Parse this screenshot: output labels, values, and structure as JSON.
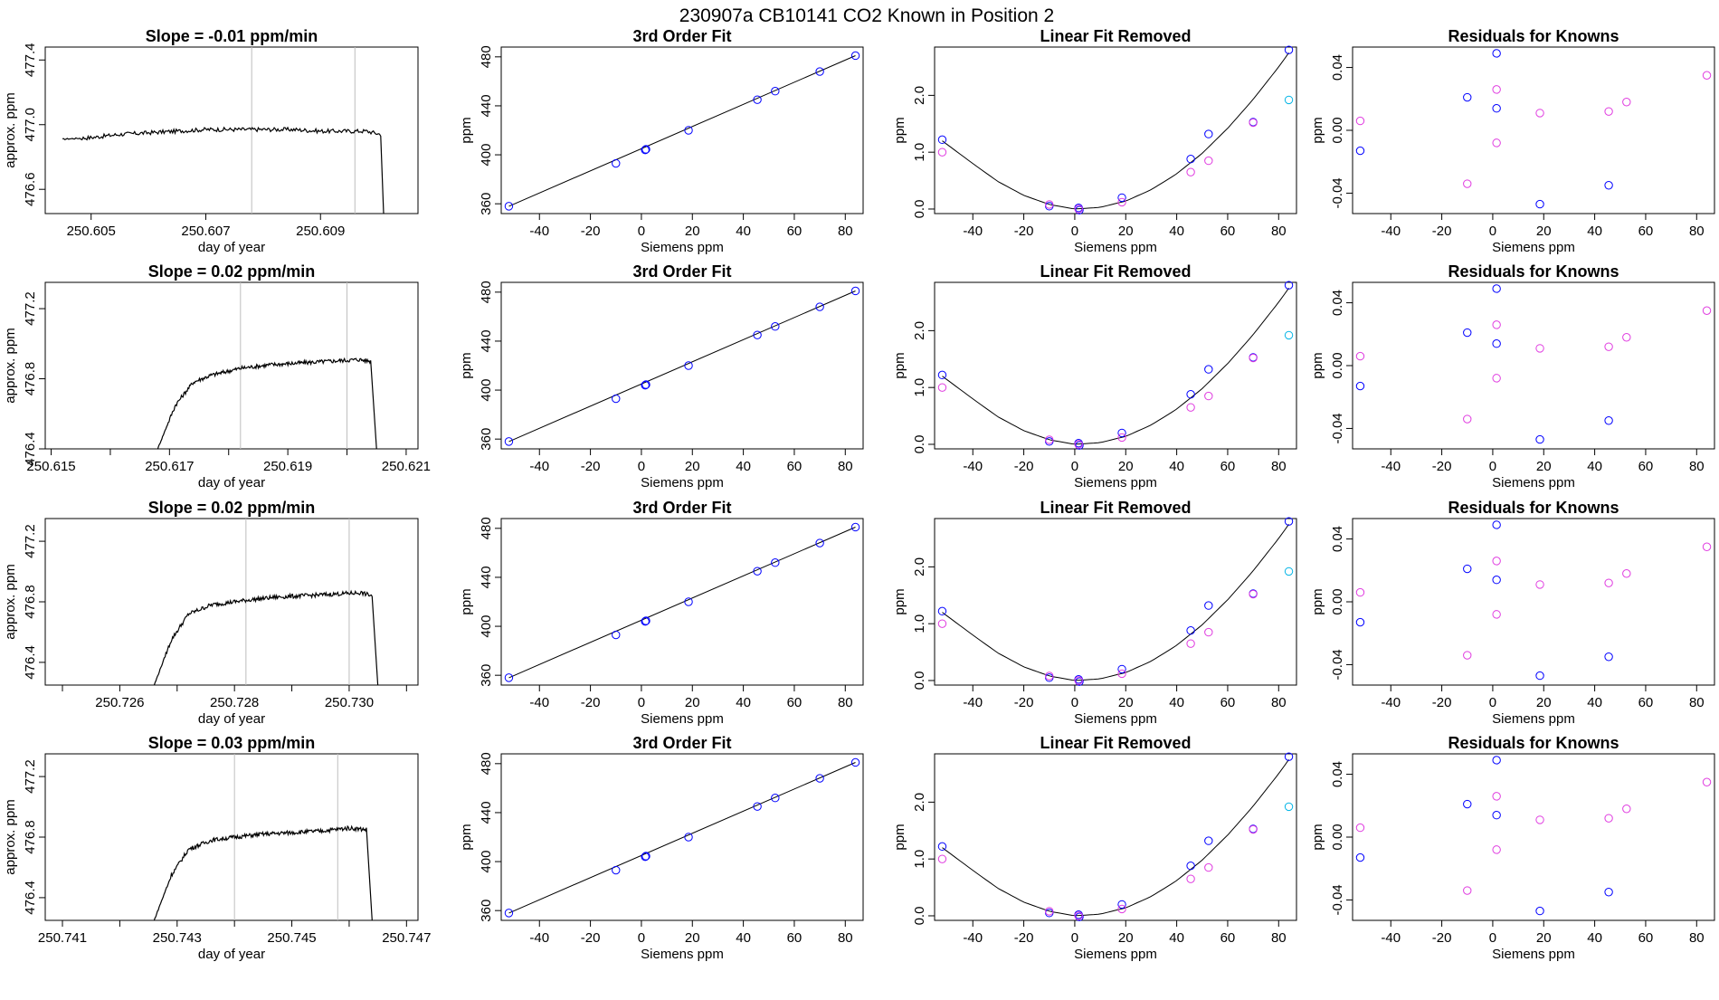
{
  "page": {
    "title": "230907a     CB10141    CO2 Known in Position  2"
  },
  "colors": {
    "line": "#000000",
    "frame": "#000000",
    "vline": "#bebebe",
    "point_blue": "#0000ff",
    "point_magenta": "#e03ce0",
    "point_cyan": "#00b4e6",
    "spike_red": "#ff0000"
  },
  "rows": [
    {
      "trace": {
        "title": "Slope =  -0.01  ppm/min",
        "xlabel": "day of year",
        "ylabel": "approx. ppm",
        "xticks": [
          "250.605",
          "250.607",
          "250.609"
        ],
        "yticks": [
          "476.6",
          "477.0",
          "477.4"
        ]
      },
      "fit": {
        "title": "3rd Order Fit",
        "xlabel": "Siemens ppm",
        "ylabel": "ppm",
        "xticks": [
          "-40",
          "-20",
          "0",
          "20",
          "40",
          "60",
          "80"
        ],
        "yticks": [
          "360",
          "400",
          "440",
          "480"
        ]
      },
      "linear": {
        "title": "Linear Fit Removed",
        "xlabel": "Siemens ppm",
        "ylabel": "ppm",
        "xticks": [
          "-40",
          "-20",
          "0",
          "20",
          "40",
          "60",
          "80"
        ],
        "yticks": [
          "0.0",
          "1.0",
          "2.0"
        ]
      },
      "resid": {
        "title": "Residuals for Knowns",
        "xlabel": "Siemens ppm",
        "ylabel": "ppm",
        "xticks": [
          "-40",
          "-20",
          "0",
          "20",
          "40",
          "60",
          "80"
        ],
        "yticks": [
          "-0.04",
          "0.00",
          "0.04"
        ]
      }
    },
    {
      "trace": {
        "title": "Slope =  0.02  ppm/min",
        "xlabel": "day of year",
        "ylabel": "approx. ppm",
        "xticks": [
          "250.615",
          "250.617",
          "250.619",
          "250.621"
        ],
        "yticks": [
          "476.4",
          "476.8",
          "477.2"
        ]
      },
      "fit": {
        "title": "3rd Order Fit",
        "xlabel": "Siemens ppm",
        "ylabel": "ppm",
        "xticks": [
          "-40",
          "-20",
          "0",
          "20",
          "40",
          "60",
          "80"
        ],
        "yticks": [
          "360",
          "400",
          "440",
          "480"
        ]
      },
      "linear": {
        "title": "Linear Fit Removed",
        "xlabel": "Siemens ppm",
        "ylabel": "ppm",
        "xticks": [
          "-40",
          "-20",
          "0",
          "20",
          "40",
          "60",
          "80"
        ],
        "yticks": [
          "0.0",
          "1.0",
          "2.0"
        ]
      },
      "resid": {
        "title": "Residuals for Knowns",
        "xlabel": "Siemens ppm",
        "ylabel": "ppm",
        "xticks": [
          "-40",
          "-20",
          "0",
          "20",
          "40",
          "60",
          "80"
        ],
        "yticks": [
          "-0.04",
          "0.00",
          "0.04"
        ]
      }
    },
    {
      "trace": {
        "title": "Slope =  0.02  ppm/min",
        "xlabel": "day of year",
        "ylabel": "approx. ppm",
        "xticks": [
          "250.726",
          "250.728",
          "250.730"
        ],
        "yticks": [
          "476.4",
          "476.8",
          "477.2"
        ]
      },
      "fit": {
        "title": "3rd Order Fit",
        "xlabel": "Siemens ppm",
        "ylabel": "ppm",
        "xticks": [
          "-40",
          "-20",
          "0",
          "20",
          "40",
          "60",
          "80"
        ],
        "yticks": [
          "360",
          "400",
          "440",
          "480"
        ]
      },
      "linear": {
        "title": "Linear Fit Removed",
        "xlabel": "Siemens ppm",
        "ylabel": "ppm",
        "xticks": [
          "-40",
          "-20",
          "0",
          "20",
          "40",
          "60",
          "80"
        ],
        "yticks": [
          "0.0",
          "1.0",
          "2.0"
        ]
      },
      "resid": {
        "title": "Residuals for Knowns",
        "xlabel": "Siemens ppm",
        "ylabel": "ppm",
        "xticks": [
          "-40",
          "-20",
          "0",
          "20",
          "40",
          "60",
          "80"
        ],
        "yticks": [
          "-0.04",
          "0.00",
          "0.04"
        ]
      }
    },
    {
      "trace": {
        "title": "Slope =  0.03  ppm/min",
        "xlabel": "day of year",
        "ylabel": "approx. ppm",
        "xticks": [
          "250.741",
          "250.743",
          "250.745",
          "250.747"
        ],
        "yticks": [
          "476.4",
          "476.8",
          "477.2"
        ]
      },
      "fit": {
        "title": "3rd Order Fit",
        "xlabel": "Siemens ppm",
        "ylabel": "ppm",
        "xticks": [
          "-40",
          "-20",
          "0",
          "20",
          "40",
          "60",
          "80"
        ],
        "yticks": [
          "360",
          "400",
          "440",
          "480"
        ]
      },
      "linear": {
        "title": "Linear Fit Removed",
        "xlabel": "Siemens ppm",
        "ylabel": "ppm",
        "xticks": [
          "-40",
          "-20",
          "0",
          "20",
          "40",
          "60",
          "80"
        ],
        "yticks": [
          "0.0",
          "1.0",
          "2.0"
        ]
      },
      "resid": {
        "title": "Residuals for Knowns",
        "xlabel": "Siemens ppm",
        "ylabel": "ppm",
        "xticks": [
          "-40",
          "-20",
          "0",
          "20",
          "40",
          "60",
          "80"
        ],
        "yticks": [
          "-0.04",
          "0.00",
          "0.04"
        ]
      }
    }
  ],
  "chart_data": [
    {
      "type": "line",
      "title": "Slope =  -0.01  ppm/min",
      "xlabel": "day of year",
      "ylabel": "approx. ppm",
      "xlim": [
        250.6042,
        250.6107
      ],
      "ylim": [
        476.45,
        477.48
      ],
      "x_ticks": [
        250.605,
        250.607,
        250.609
      ],
      "y_ticks": [
        476.6,
        477.0,
        477.4
      ],
      "vlines": [
        250.6078,
        250.6096
      ],
      "series": [
        {
          "x": [
            250.6045,
            250.605,
            250.6055,
            250.606,
            250.6065,
            250.607,
            250.6075,
            250.608,
            250.6085,
            250.609,
            250.6095,
            250.6098,
            250.61005,
            250.6101
          ],
          "y": [
            476.91,
            476.92,
            476.94,
            476.95,
            476.96,
            476.97,
            476.97,
            476.97,
            476.97,
            476.96,
            476.96,
            476.96,
            476.94,
            476.45
          ]
        }
      ]
    },
    {
      "type": "line",
      "title": "Slope =  0.02  ppm/min",
      "xlabel": "day of year",
      "ylabel": "approx. ppm",
      "xlim": [
        250.6149,
        250.6212
      ],
      "ylim": [
        476.4,
        477.35
      ],
      "x_ticks": [
        250.615,
        250.616,
        250.617,
        250.618,
        250.619,
        250.62,
        250.621
      ],
      "y_ticks": [
        476.4,
        476.8,
        477.2
      ],
      "vlines": [
        250.6182,
        250.62
      ],
      "series": [
        {
          "x": [
            250.6168,
            250.6171,
            250.6174,
            250.6177,
            250.6182,
            250.6187,
            250.6192,
            250.6197,
            250.6202,
            250.6204,
            250.6205
          ],
          "y": [
            476.4,
            476.65,
            476.78,
            476.82,
            476.86,
            476.88,
            476.89,
            476.9,
            476.91,
            476.9,
            476.4
          ]
        }
      ]
    },
    {
      "type": "line",
      "title": "Slope =  0.02  ppm/min",
      "xlabel": "day of year",
      "ylabel": "approx. ppm",
      "xlim": [
        250.7247,
        250.7312
      ],
      "ylim": [
        476.25,
        477.35
      ],
      "x_ticks": [
        250.725,
        250.726,
        250.727,
        250.728,
        250.729,
        250.73,
        250.731
      ],
      "y_ticks": [
        476.4,
        476.8,
        477.2
      ],
      "vlines": [
        250.7282,
        250.73
      ],
      "series": [
        {
          "x": [
            250.7266,
            250.7269,
            250.7272,
            250.7276,
            250.7282,
            250.7287,
            250.7292,
            250.7297,
            250.7302,
            250.7304,
            250.7305
          ],
          "y": [
            476.25,
            476.55,
            476.72,
            476.78,
            476.81,
            476.83,
            476.84,
            476.85,
            476.86,
            476.84,
            476.25
          ]
        }
      ]
    },
    {
      "type": "line",
      "title": "Slope =  0.03  ppm/min",
      "xlabel": "day of year",
      "ylabel": "approx. ppm",
      "xlim": [
        250.7407,
        250.7472
      ],
      "ylim": [
        476.25,
        477.35
      ],
      "x_ticks": [
        250.741,
        250.742,
        250.743,
        250.744,
        250.745,
        250.746,
        250.747
      ],
      "y_ticks": [
        476.4,
        476.8,
        477.2
      ],
      "vlines": [
        250.744,
        250.7458
      ],
      "series": [
        {
          "x": [
            250.7426,
            250.7429,
            250.7432,
            250.7436,
            250.744,
            250.7445,
            250.745,
            250.7455,
            250.746,
            250.7463,
            250.7464
          ],
          "y": [
            476.25,
            476.55,
            476.72,
            476.78,
            476.8,
            476.82,
            476.83,
            476.84,
            476.86,
            476.85,
            476.25
          ]
        }
      ]
    },
    {
      "type": "scatter",
      "title": "3rd Order Fit",
      "xlabel": "Siemens ppm",
      "ylabel": "ppm",
      "xlim": [
        -55,
        87
      ],
      "ylim": [
        352,
        488
      ],
      "x_ticks": [
        -40,
        -20,
        0,
        20,
        40,
        60,
        80
      ],
      "y_ticks": [
        360,
        400,
        440,
        480
      ],
      "fit_line": {
        "x": [
          -52,
          84
        ],
        "y": [
          358,
          481
        ]
      },
      "series": [
        {
          "name": "knowns",
          "x": [
            -52,
            -10,
            1.5,
            1.8,
            18.5,
            45.5,
            52.5,
            70,
            84
          ],
          "y": [
            358,
            393,
            404,
            404.5,
            420,
            445,
            452,
            468,
            481
          ]
        }
      ]
    },
    {
      "type": "scatter",
      "title": "Linear Fit Removed",
      "xlabel": "Siemens ppm",
      "ylabel": "ppm",
      "xlim": [
        -55,
        87
      ],
      "ylim": [
        -0.08,
        2.85
      ],
      "x_ticks": [
        -40,
        -20,
        0,
        20,
        40,
        60,
        80
      ],
      "y_ticks": [
        0.0,
        1.0,
        2.0
      ],
      "curve": {
        "x": [
          -52,
          -40,
          -30,
          -20,
          -10,
          0,
          10,
          20,
          30,
          40,
          50,
          60,
          70,
          80,
          84
        ],
        "y": [
          1.2,
          0.8,
          0.48,
          0.24,
          0.08,
          0.0,
          0.03,
          0.14,
          0.34,
          0.62,
          0.98,
          1.42,
          1.93,
          2.5,
          2.75
        ]
      },
      "series": [
        {
          "name": "blue",
          "x": [
            -52,
            -10,
            1.5,
            1.8,
            18.5,
            45.5,
            52.5,
            70,
            84
          ],
          "y": [
            1.22,
            0.05,
            0.02,
            -0.02,
            0.2,
            0.88,
            1.32,
            1.53,
            2.8
          ]
        },
        {
          "name": "magenta",
          "x": [
            -52,
            -10,
            1.5,
            18.5,
            45.5,
            52.5,
            70
          ],
          "y": [
            1.0,
            0.08,
            0.0,
            0.12,
            0.65,
            0.85,
            1.52
          ]
        },
        {
          "name": "cyan",
          "x": [
            84
          ],
          "y": [
            1.92
          ]
        }
      ]
    },
    {
      "type": "scatter",
      "title": "Residuals for Knowns",
      "xlabel": "Siemens ppm",
      "ylabel": "ppm",
      "xlim": [
        -55,
        87
      ],
      "ylim": [
        -0.053,
        0.053
      ],
      "x_ticks": [
        -40,
        -20,
        0,
        20,
        40,
        60,
        80
      ],
      "y_ticks": [
        -0.04,
        0.0,
        0.04
      ],
      "series": [
        {
          "name": "blue",
          "x": [
            -52,
            -10,
            1.5,
            1.5,
            18.5,
            45.5
          ],
          "y": [
            -0.013,
            0.021,
            0.049,
            0.014,
            -0.047,
            -0.035
          ]
        },
        {
          "name": "magenta",
          "x": [
            -52,
            -10,
            1.5,
            1.5,
            18.5,
            45.5,
            52.5,
            84
          ],
          "y": [
            0.006,
            -0.034,
            0.026,
            -0.008,
            0.011,
            0.012,
            0.018,
            0.035
          ]
        }
      ]
    }
  ]
}
